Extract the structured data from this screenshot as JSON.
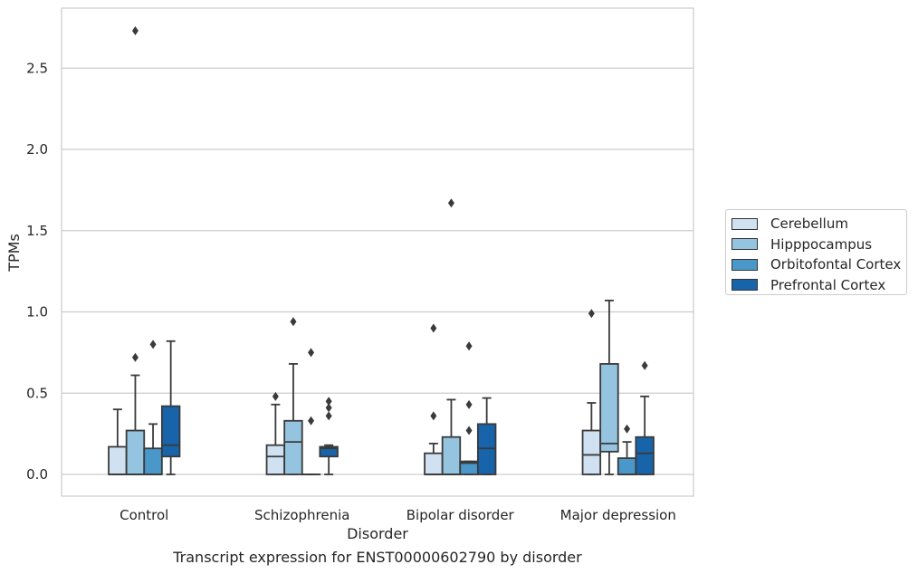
{
  "chart_data": {
    "type": "box",
    "xlabel": "Disorder",
    "ylabel": "TPMs",
    "caption": "Transcript expression for ENST00000602790 by disorder",
    "ylim": [
      -0.13,
      2.88
    ],
    "yticks": [
      0.0,
      0.5,
      1.0,
      1.5,
      2.0,
      2.5
    ],
    "ytick_labels": [
      "0.0",
      "0.5",
      "1.0",
      "1.5",
      "2.0",
      "2.5"
    ],
    "grid": "horizontal",
    "legend_position": "right",
    "categories": [
      "Control",
      "Schizophrenia",
      "Bipolar disorder",
      "Major depression"
    ],
    "series": [
      {
        "name": "Cerebellum",
        "color": "#d0e1f2",
        "boxes": [
          {
            "whislo": 0.0,
            "q1": 0.0,
            "med": 0.0,
            "q3": 0.17,
            "whishi": 0.4,
            "fliers": []
          },
          {
            "whislo": 0.0,
            "q1": 0.0,
            "med": 0.11,
            "q3": 0.18,
            "whishi": 0.43,
            "fliers": [
              0.48
            ]
          },
          {
            "whislo": 0.0,
            "q1": 0.0,
            "med": 0.0,
            "q3": 0.13,
            "whishi": 0.19,
            "fliers": [
              0.36,
              0.9
            ]
          },
          {
            "whislo": 0.0,
            "q1": 0.0,
            "med": 0.12,
            "q3": 0.27,
            "whishi": 0.44,
            "fliers": [
              0.99
            ]
          }
        ]
      },
      {
        "name": "Hipppocampus",
        "color": "#94c4df",
        "boxes": [
          {
            "whislo": 0.0,
            "q1": 0.0,
            "med": 0.0,
            "q3": 0.27,
            "whishi": 0.61,
            "fliers": [
              0.72,
              2.73
            ]
          },
          {
            "whislo": 0.0,
            "q1": 0.0,
            "med": 0.2,
            "q3": 0.33,
            "whishi": 0.68,
            "fliers": [
              0.94
            ]
          },
          {
            "whislo": 0.0,
            "q1": 0.0,
            "med": 0.0,
            "q3": 0.23,
            "whishi": 0.46,
            "fliers": [
              1.67
            ]
          },
          {
            "whislo": 0.0,
            "q1": 0.14,
            "med": 0.19,
            "q3": 0.68,
            "whishi": 1.07,
            "fliers": []
          }
        ]
      },
      {
        "name": "Orbitofontal Cortex",
        "color": "#4a98c9",
        "boxes": [
          {
            "whislo": 0.0,
            "q1": 0.0,
            "med": 0.0,
            "q3": 0.16,
            "whishi": 0.31,
            "fliers": [
              0.8
            ]
          },
          {
            "whislo": 0.0,
            "q1": 0.0,
            "med": 0.0,
            "q3": 0.0,
            "whishi": 0.0,
            "fliers": [
              0.33,
              0.75
            ]
          },
          {
            "whislo": 0.0,
            "q1": 0.0,
            "med": 0.07,
            "q3": 0.08,
            "whishi": 0.08,
            "fliers": [
              0.27,
              0.43,
              0.79
            ]
          },
          {
            "whislo": 0.0,
            "q1": 0.0,
            "med": 0.0,
            "q3": 0.1,
            "whishi": 0.2,
            "fliers": [
              0.28
            ]
          }
        ]
      },
      {
        "name": "Prefrontal Cortex",
        "color": "#1764ab",
        "boxes": [
          {
            "whislo": 0.0,
            "q1": 0.11,
            "med": 0.18,
            "q3": 0.42,
            "whishi": 0.82,
            "fliers": []
          },
          {
            "whislo": 0.0,
            "q1": 0.11,
            "med": 0.16,
            "q3": 0.17,
            "whishi": 0.18,
            "fliers": [
              0.36,
              0.41,
              0.45
            ]
          },
          {
            "whislo": 0.0,
            "q1": 0.0,
            "med": 0.16,
            "q3": 0.31,
            "whishi": 0.47,
            "fliers": []
          },
          {
            "whislo": 0.0,
            "q1": 0.0,
            "med": 0.13,
            "q3": 0.23,
            "whishi": 0.48,
            "fliers": [
              0.67
            ]
          }
        ]
      }
    ]
  }
}
